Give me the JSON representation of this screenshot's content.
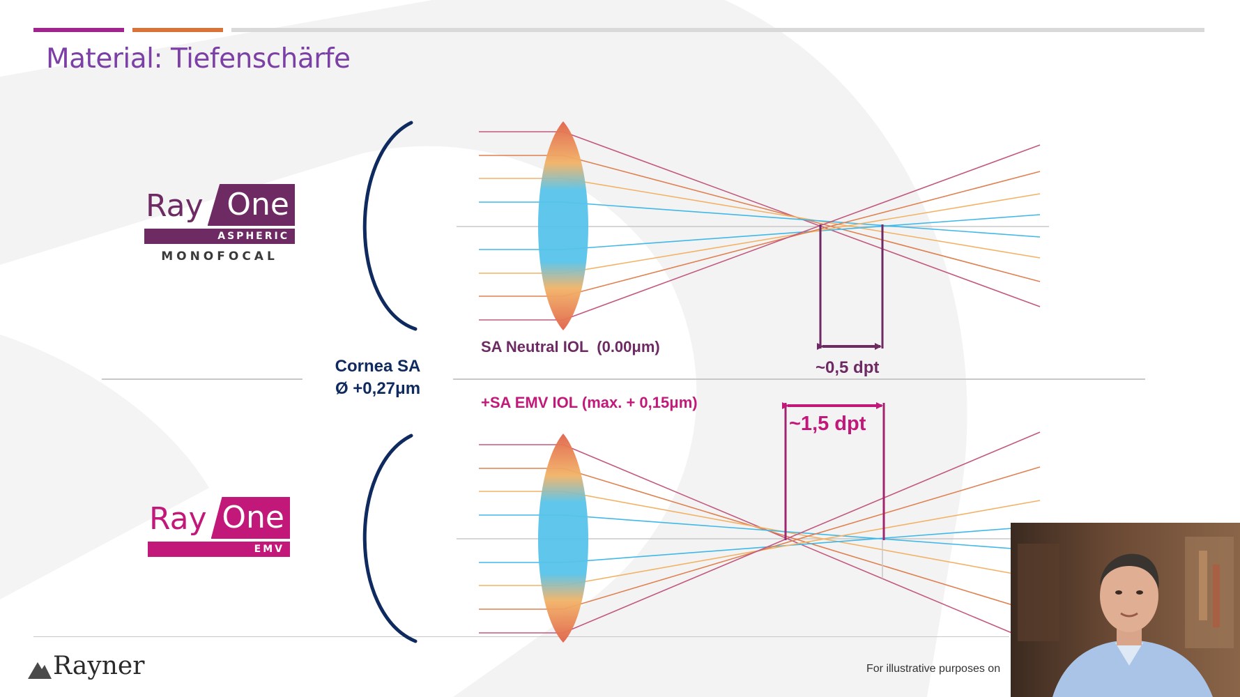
{
  "slide": {
    "title": "Material: Tiefenschärfe",
    "colors": {
      "title": "#7B3FA6",
      "bar_purple": "#A0248E",
      "bar_orange": "#D8733A",
      "bar_grey": "#D9D9D9",
      "rayone_aspheric": "#6E2A63",
      "rayone_emv": "#C2187A",
      "cornea_bracket": "#0E2A5E",
      "neutral_label": "#6E2A63",
      "emv_label": "#C2187A"
    }
  },
  "logos": {
    "aspheric": {
      "ray": "Ray",
      "one": "One",
      "subtitle": "ASPHERIC",
      "caption": "MONOFOCAL"
    },
    "emv": {
      "ray": "Ray",
      "one": "One",
      "subtitle": "EMV"
    }
  },
  "cornea": {
    "line1": "Cornea SA",
    "line2": "Ø +0,27μm"
  },
  "diagram_top": {
    "lens_label": "SA Neutral IOL  (0.00μm)",
    "range_label": "~0,5 dpt"
  },
  "diagram_bottom": {
    "lens_label": "+SA EMV IOL (max. + 0,15μm)",
    "range_label": "~1,5 dpt"
  },
  "footer": {
    "brand": "Rayner",
    "note": "For illustrative purposes on",
    "logo_icon": "rayner-mountain-icon"
  },
  "video": {
    "icon": "speaker-webcam"
  }
}
